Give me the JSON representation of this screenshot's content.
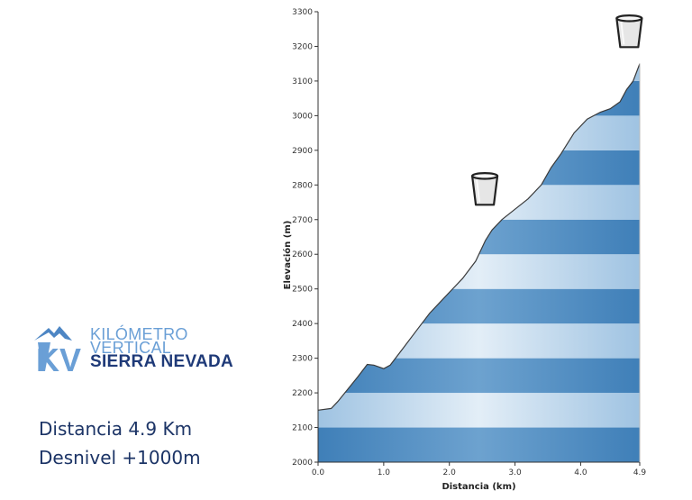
{
  "logo": {
    "mark": "KV",
    "line1": "KILÓMETRO",
    "line2": "VERTICAL",
    "line3": "SIERRA NEVADA"
  },
  "stats": {
    "distance": "Distancia 4.9 Km",
    "gain": "Desnivel +1000m"
  },
  "colors": {
    "band_dark": "#4a86bd",
    "band_light": "#d8e8f4",
    "profile_line": "#3a3a3a",
    "logo_dark": "#1f3a78",
    "logo_light": "#6a9fd6"
  },
  "chart_data": {
    "type": "area",
    "xlabel": "Distancia  (km)",
    "ylabel": "Elevación (m)",
    "xlim": [
      0,
      4.9
    ],
    "ylim": [
      2000,
      3300
    ],
    "x_ticks": [
      "0.0",
      "1.0",
      "2.0",
      "3.0",
      "4.0",
      "4.9"
    ],
    "x_tick_values": [
      0,
      1,
      2,
      3,
      4,
      4.9
    ],
    "y_ticks": [
      2000,
      2100,
      2200,
      2300,
      2400,
      2500,
      2600,
      2700,
      2800,
      2900,
      3000,
      3100,
      3200,
      3300
    ],
    "series": [
      {
        "x": [
          0,
          0.2,
          0.3,
          0.45,
          0.6,
          0.75,
          0.85,
          1.0,
          1.1,
          1.3,
          1.5,
          1.7,
          1.85,
          2.0,
          2.2,
          2.4,
          2.55,
          2.65,
          2.8,
          3.0,
          3.2,
          3.4,
          3.55,
          3.7,
          3.9,
          4.1,
          4.3,
          4.45,
          4.6,
          4.7,
          4.8,
          4.9
        ],
        "y": [
          2150,
          2155,
          2175,
          2210,
          2245,
          2282,
          2280,
          2270,
          2280,
          2330,
          2380,
          2430,
          2460,
          2490,
          2530,
          2580,
          2640,
          2670,
          2700,
          2730,
          2760,
          2800,
          2850,
          2890,
          2950,
          2990,
          3010,
          3020,
          3040,
          3075,
          3100,
          3150
        ]
      }
    ],
    "markers": [
      {
        "name": "water-station-icon",
        "x": 2.65
      },
      {
        "name": "water-station-icon",
        "x": 4.85
      }
    ],
    "grid": false
  }
}
